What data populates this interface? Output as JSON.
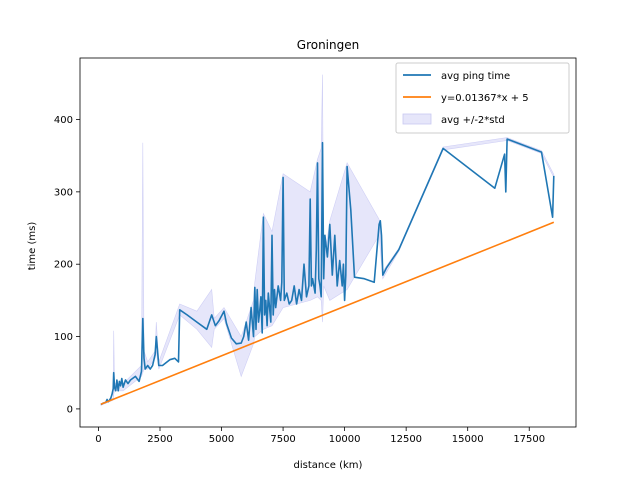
{
  "chart_data": {
    "type": "line",
    "title": "Groningen",
    "xlabel": "distance (km)",
    "ylabel": "time (ms)",
    "xlim": [
      -750,
      19400
    ],
    "ylim": [
      -25,
      485
    ],
    "xticks": [
      0,
      2500,
      5000,
      7500,
      10000,
      12500,
      15000,
      17500
    ],
    "yticks": [
      0,
      100,
      200,
      300,
      400
    ],
    "grid": false,
    "legend": {
      "placement": "top-right",
      "entries": [
        "avg ping time",
        "y=0.01367*x + 5",
        "avg +/-2*std"
      ]
    },
    "series": [
      {
        "name": "avg ping time",
        "color": "#1f77b4",
        "points": [
          [
            100,
            6
          ],
          [
            200,
            8
          ],
          [
            300,
            9
          ],
          [
            350,
            13
          ],
          [
            400,
            10
          ],
          [
            450,
            12
          ],
          [
            500,
            15
          ],
          [
            550,
            20
          ],
          [
            600,
            28
          ],
          [
            620,
            50
          ],
          [
            650,
            30
          ],
          [
            700,
            25
          ],
          [
            750,
            40
          ],
          [
            800,
            25
          ],
          [
            850,
            38
          ],
          [
            900,
            32
          ],
          [
            950,
            42
          ],
          [
            1000,
            30
          ],
          [
            1100,
            40
          ],
          [
            1200,
            35
          ],
          [
            1300,
            40
          ],
          [
            1500,
            45
          ],
          [
            1650,
            38
          ],
          [
            1750,
            52
          ],
          [
            1800,
            125
          ],
          [
            1850,
            70
          ],
          [
            1900,
            55
          ],
          [
            2000,
            60
          ],
          [
            2100,
            55
          ],
          [
            2200,
            60
          ],
          [
            2300,
            75
          ],
          [
            2350,
            100
          ],
          [
            2450,
            60
          ],
          [
            2600,
            60
          ],
          [
            2900,
            68
          ],
          [
            3100,
            70
          ],
          [
            3250,
            65
          ],
          [
            3300,
            137
          ],
          [
            3600,
            130
          ],
          [
            4000,
            120
          ],
          [
            4400,
            110
          ],
          [
            4600,
            130
          ],
          [
            4750,
            115
          ],
          [
            4900,
            122
          ],
          [
            5100,
            135
          ],
          [
            5200,
            118
          ],
          [
            5400,
            98
          ],
          [
            5600,
            90
          ],
          [
            5800,
            91
          ],
          [
            5900,
            100
          ],
          [
            6000,
            120
          ],
          [
            6100,
            95
          ],
          [
            6200,
            140
          ],
          [
            6300,
            100
          ],
          [
            6350,
            168
          ],
          [
            6400,
            110
          ],
          [
            6450,
            165
          ],
          [
            6500,
            120
          ],
          [
            6550,
            135
          ],
          [
            6600,
            155
          ],
          [
            6650,
            105
          ],
          [
            6700,
            265
          ],
          [
            6750,
            130
          ],
          [
            6800,
            150
          ],
          [
            6850,
            115
          ],
          [
            6900,
            160
          ],
          [
            7000,
            120
          ],
          [
            7050,
            240
          ],
          [
            7100,
            130
          ],
          [
            7150,
            165
          ],
          [
            7200,
            140
          ],
          [
            7300,
            170
          ],
          [
            7400,
            150
          ],
          [
            7450,
            175
          ],
          [
            7500,
            320
          ],
          [
            7550,
            150
          ],
          [
            7650,
            160
          ],
          [
            7750,
            145
          ],
          [
            7850,
            150
          ],
          [
            7950,
            170
          ],
          [
            8050,
            145
          ],
          [
            8150,
            165
          ],
          [
            8250,
            150
          ],
          [
            8350,
            200
          ],
          [
            8450,
            155
          ],
          [
            8550,
            170
          ],
          [
            8600,
            290
          ],
          [
            8650,
            170
          ],
          [
            8700,
            180
          ],
          [
            8800,
            160
          ],
          [
            8850,
            220
          ],
          [
            8900,
            340
          ],
          [
            8950,
            180
          ],
          [
            9000,
            170
          ],
          [
            9050,
            155
          ],
          [
            9100,
            368
          ],
          [
            9150,
            180
          ],
          [
            9200,
            240
          ],
          [
            9300,
            210
          ],
          [
            9400,
            255
          ],
          [
            9500,
            185
          ],
          [
            9600,
            240
          ],
          [
            9700,
            170
          ],
          [
            9800,
            205
          ],
          [
            9900,
            170
          ],
          [
            9950,
            200
          ],
          [
            10000,
            150
          ],
          [
            10050,
            185
          ],
          [
            10100,
            335
          ],
          [
            10250,
            275
          ],
          [
            10400,
            182
          ],
          [
            10800,
            180
          ],
          [
            11200,
            175
          ],
          [
            11400,
            255
          ],
          [
            11450,
            260
          ],
          [
            11500,
            240
          ],
          [
            11550,
            185
          ],
          [
            11700,
            195
          ],
          [
            12200,
            220
          ],
          [
            14000,
            360
          ],
          [
            16100,
            305
          ],
          [
            16500,
            352
          ],
          [
            16550,
            300
          ],
          [
            16600,
            373
          ],
          [
            18000,
            355
          ],
          [
            18450,
            265
          ],
          [
            18500,
            322
          ]
        ]
      },
      {
        "name": "y=0.01367*x + 5",
        "color": "#ff7f0e",
        "points": [
          [
            100,
            6.4
          ],
          [
            18500,
            257.9
          ]
        ]
      }
    ],
    "band": {
      "name": "avg +/-2*std",
      "color": "#d8d8f8",
      "upper": [
        [
          100,
          7
        ],
        [
          600,
          15
        ],
        [
          620,
          108
        ],
        [
          650,
          35
        ],
        [
          1000,
          35
        ],
        [
          1750,
          60
        ],
        [
          1800,
          368
        ],
        [
          1850,
          80
        ],
        [
          2000,
          65
        ],
        [
          2300,
          80
        ],
        [
          2350,
          120
        ],
        [
          2450,
          65
        ],
        [
          3300,
          145
        ],
        [
          4000,
          135
        ],
        [
          4600,
          165
        ],
        [
          4700,
          125
        ],
        [
          5100,
          140
        ],
        [
          5800,
          100
        ],
        [
          6300,
          150
        ],
        [
          6350,
          175
        ],
        [
          6700,
          270
        ],
        [
          7050,
          245
        ],
        [
          7500,
          325
        ],
        [
          8600,
          300
        ],
        [
          8900,
          345
        ],
        [
          9050,
          360
        ],
        [
          9100,
          462
        ],
        [
          9150,
          200
        ],
        [
          9400,
          260
        ],
        [
          10100,
          340
        ],
        [
          11400,
          262
        ],
        [
          11550,
          190
        ],
        [
          12200,
          222
        ],
        [
          14000,
          362
        ],
        [
          16600,
          375
        ],
        [
          18000,
          357
        ],
        [
          18500,
          324
        ]
      ],
      "lower": [
        [
          100,
          5
        ],
        [
          600,
          12
        ],
        [
          620,
          20
        ],
        [
          650,
          25
        ],
        [
          1000,
          25
        ],
        [
          1750,
          45
        ],
        [
          1800,
          50
        ],
        [
          1850,
          55
        ],
        [
          2000,
          55
        ],
        [
          2300,
          70
        ],
        [
          2350,
          80
        ],
        [
          2450,
          55
        ],
        [
          3300,
          130
        ],
        [
          4000,
          110
        ],
        [
          4600,
          85
        ],
        [
          4700,
          110
        ],
        [
          5100,
          125
        ],
        [
          5800,
          45
        ],
        [
          6300,
          90
        ],
        [
          6350,
          100
        ],
        [
          6700,
          110
        ],
        [
          7050,
          115
        ],
        [
          7500,
          140
        ],
        [
          8600,
          150
        ],
        [
          8900,
          155
        ],
        [
          9050,
          150
        ],
        [
          9100,
          120
        ],
        [
          9150,
          170
        ],
        [
          9400,
          150
        ],
        [
          10100,
          165
        ],
        [
          11400,
          240
        ],
        [
          11550,
          180
        ],
        [
          12200,
          218
        ],
        [
          14000,
          358
        ],
        [
          16600,
          371
        ],
        [
          18000,
          353
        ],
        [
          18500,
          320
        ]
      ]
    }
  }
}
